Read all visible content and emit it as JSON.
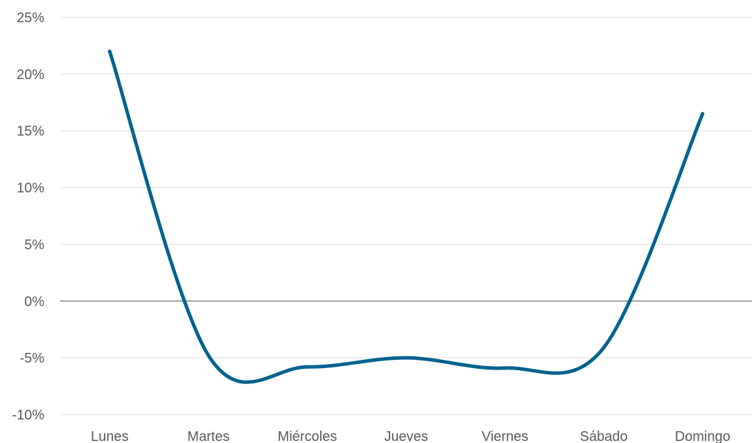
{
  "chart_data": {
    "type": "line",
    "title": "",
    "xlabel": "",
    "ylabel": "",
    "categories": [
      "Lunes",
      "Martes",
      "Miércoles",
      "Jueves",
      "Viernes",
      "Sábado",
      "Domingo"
    ],
    "series": [
      {
        "values": [
          22.0,
          -4.8,
          -5.8,
          -5.0,
          -5.9,
          -4.1,
          16.5
        ],
        "color": "#00628f"
      }
    ],
    "ylim": [
      -10,
      25
    ],
    "y_ticks": [
      25,
      20,
      15,
      10,
      5,
      0,
      -5,
      -10
    ],
    "y_tick_labels": [
      "25%",
      "20%",
      "15%",
      "10%",
      "5%",
      "0%",
      "-5%",
      "-10%"
    ],
    "grid": true,
    "smooth": true,
    "colors": {
      "gridline": "#d9d9d9",
      "zero_line": "#808080",
      "tick_text": "#595959"
    }
  }
}
